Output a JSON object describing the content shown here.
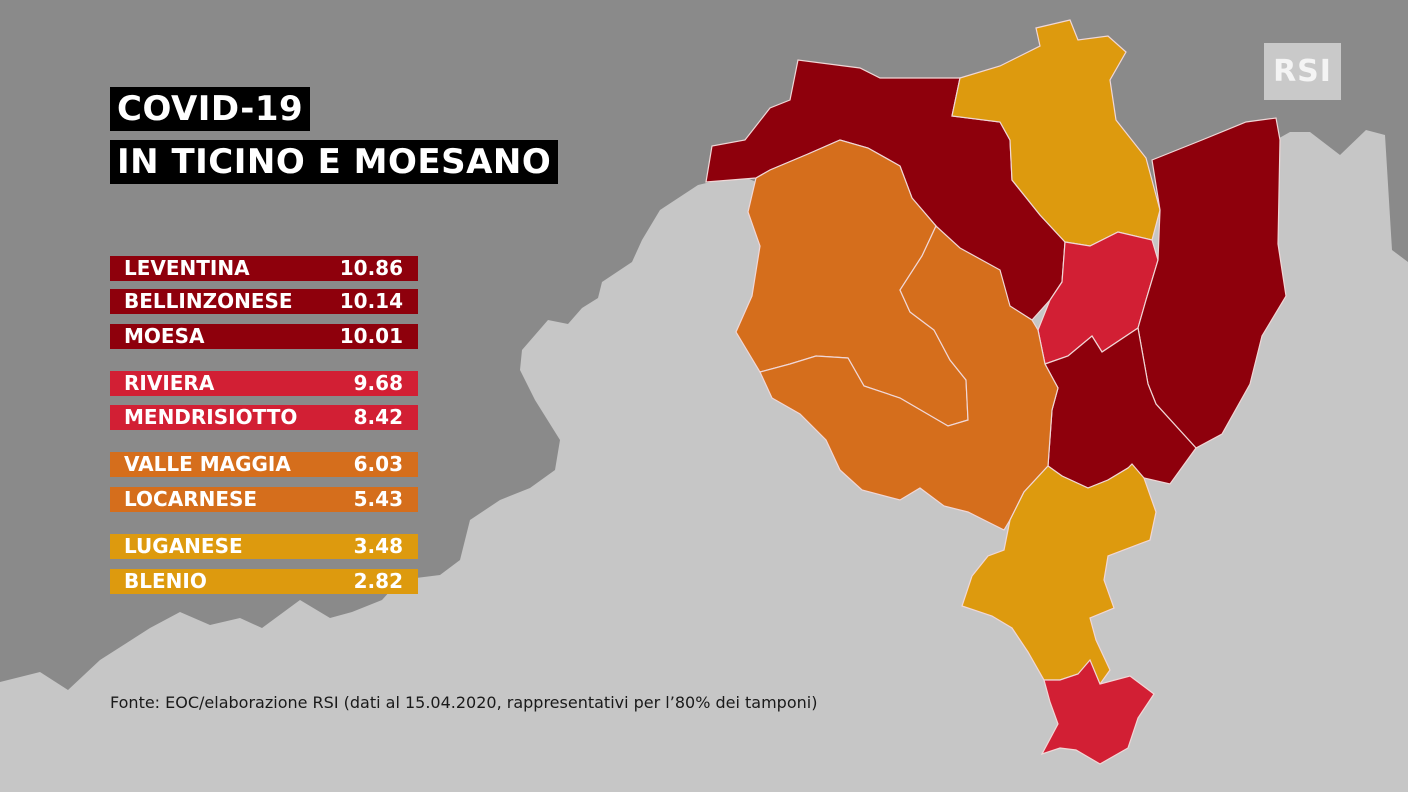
{
  "title": {
    "line1": "COVID-19",
    "line2": "IN TICINO E MOESANO"
  },
  "colors": {
    "background_north": "#8a8a8a",
    "background_south": "#c6c6c6",
    "dark_red": "#8e000c",
    "red": "#d21f34",
    "orange": "#d56e1c",
    "yellow": "#dd9a0e"
  },
  "districts": [
    {
      "name": "LEVENTINA",
      "value": "10.86",
      "color": "#8e000c"
    },
    {
      "name": "BELLINZONESE",
      "value": "10.14",
      "color": "#8e000c"
    },
    {
      "name": "MOESA",
      "value": "10.01",
      "color": "#8e000c"
    },
    {
      "name": "RIVIERA",
      "value": "9.68",
      "color": "#d21f34"
    },
    {
      "name": "MENDRISIOTTO",
      "value": "8.42",
      "color": "#d21f34"
    },
    {
      "name": "VALLE MAGGIA",
      "value": "6.03",
      "color": "#d56e1c"
    },
    {
      "name": "LOCARNESE",
      "value": "5.43",
      "color": "#d56e1c"
    },
    {
      "name": "LUGANESE",
      "value": "3.48",
      "color": "#dd9a0e"
    },
    {
      "name": "BLENIO",
      "value": "2.82",
      "color": "#dd9a0e"
    }
  ],
  "source": "Fonte: EOC/elaborazione RSI (dati al 15.04.2020, rappresentativi per l’80% dei tamponi)",
  "logo": "RSI"
}
